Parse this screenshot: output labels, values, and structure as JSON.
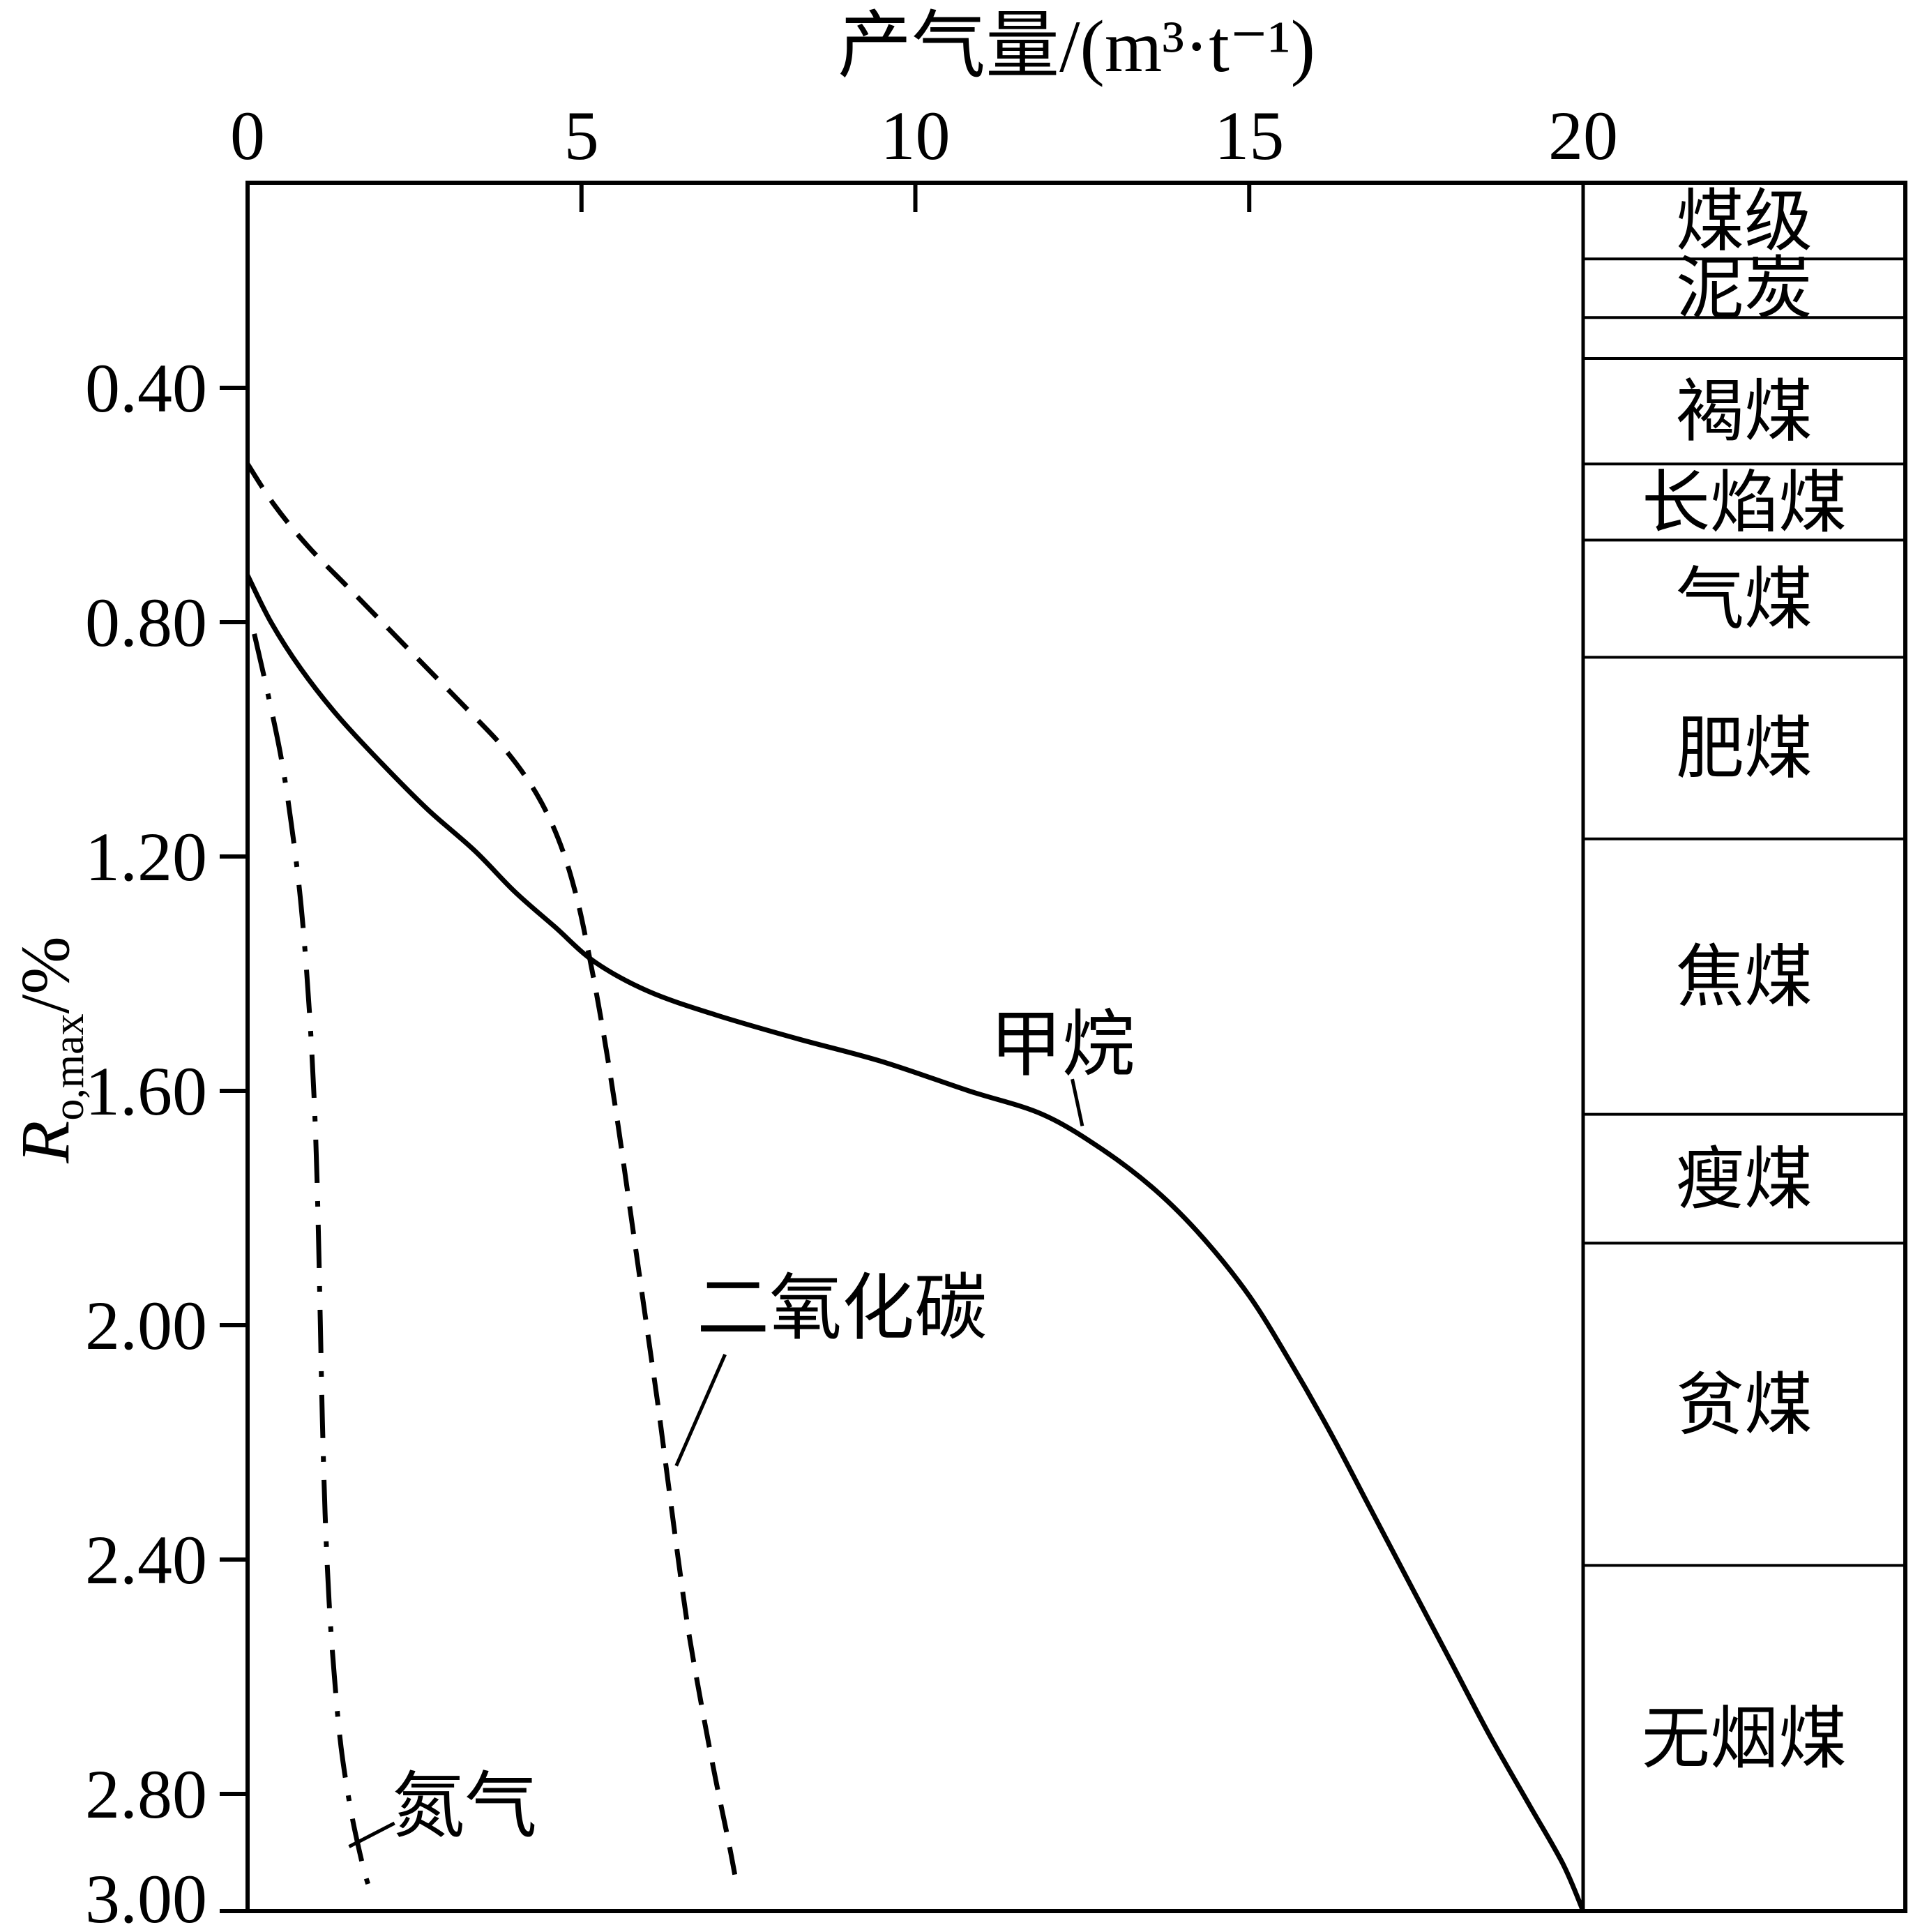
{
  "chart_data": {
    "type": "line",
    "title": "",
    "grid": false,
    "legend": "labels-on-chart",
    "colors": {
      "ink": "#000000",
      "background": "#ffffff"
    },
    "x_axis": {
      "label": "产气量/(m³·t⁻¹)",
      "position": "top",
      "range": [
        0,
        20
      ],
      "ticks": [
        {
          "v": 0,
          "label": "0"
        },
        {
          "v": 5,
          "label": "5"
        },
        {
          "v": 10,
          "label": "10"
        },
        {
          "v": 15,
          "label": "15"
        },
        {
          "v": 20,
          "label": "20"
        }
      ]
    },
    "y_axis": {
      "symbol": "R",
      "subscript": "o,max",
      "suffix": "/%",
      "direction": "downward",
      "range_top": 0.05,
      "range_bottom": 3.0,
      "ticks": [
        {
          "v": 0.4,
          "label": "0.40"
        },
        {
          "v": 0.8,
          "label": "0.80"
        },
        {
          "v": 1.2,
          "label": "1.20"
        },
        {
          "v": 1.6,
          "label": "1.60"
        },
        {
          "v": 2.0,
          "label": "2.00"
        },
        {
          "v": 2.4,
          "label": "2.40"
        },
        {
          "v": 2.8,
          "label": "2.80"
        },
        {
          "v": 3.0,
          "label": "3.00"
        }
      ]
    },
    "series": [
      {
        "id": "methane",
        "name": "甲烷",
        "style": "solid",
        "points": [
          [
            0,
            0.72
          ],
          [
            0.35,
            0.8
          ],
          [
            0.8,
            0.88
          ],
          [
            1.35,
            0.96
          ],
          [
            2.0,
            1.04
          ],
          [
            2.7,
            1.12
          ],
          [
            3.4,
            1.19
          ],
          [
            4.0,
            1.26
          ],
          [
            4.6,
            1.32
          ],
          [
            5.2,
            1.38
          ],
          [
            6.0,
            1.43
          ],
          [
            7.0,
            1.47
          ],
          [
            8.2,
            1.51
          ],
          [
            9.5,
            1.55
          ],
          [
            10.8,
            1.6
          ],
          [
            11.9,
            1.64
          ],
          [
            12.8,
            1.7
          ],
          [
            13.6,
            1.77
          ],
          [
            14.3,
            1.85
          ],
          [
            15.0,
            1.95
          ],
          [
            15.6,
            2.06
          ],
          [
            16.2,
            2.18
          ],
          [
            16.8,
            2.31
          ],
          [
            17.4,
            2.44
          ],
          [
            18.0,
            2.57
          ],
          [
            18.6,
            2.7
          ],
          [
            19.2,
            2.82
          ],
          [
            19.7,
            2.92
          ],
          [
            20.0,
            3.0
          ]
        ]
      },
      {
        "id": "co2",
        "name": "二氧化碳",
        "style": "dashed",
        "points": [
          [
            0,
            0.53
          ],
          [
            0.4,
            0.6
          ],
          [
            0.9,
            0.67
          ],
          [
            1.5,
            0.74
          ],
          [
            2.1,
            0.81
          ],
          [
            2.7,
            0.88
          ],
          [
            3.3,
            0.95
          ],
          [
            3.8,
            1.01
          ],
          [
            4.2,
            1.07
          ],
          [
            4.5,
            1.13
          ],
          [
            4.75,
            1.2
          ],
          [
            4.95,
            1.28
          ],
          [
            5.1,
            1.36
          ],
          [
            5.25,
            1.45
          ],
          [
            5.4,
            1.55
          ],
          [
            5.55,
            1.66
          ],
          [
            5.7,
            1.78
          ],
          [
            5.85,
            1.9
          ],
          [
            6.0,
            2.02
          ],
          [
            6.15,
            2.14
          ],
          [
            6.3,
            2.27
          ],
          [
            6.45,
            2.4
          ],
          [
            6.6,
            2.52
          ],
          [
            6.8,
            2.65
          ],
          [
            7.0,
            2.77
          ],
          [
            7.2,
            2.88
          ],
          [
            7.3,
            2.94
          ]
        ]
      },
      {
        "id": "nitrogen",
        "name": "氮气",
        "style": "dashdot",
        "points": [
          [
            0.1,
            0.82
          ],
          [
            0.3,
            0.92
          ],
          [
            0.5,
            1.03
          ],
          [
            0.65,
            1.14
          ],
          [
            0.78,
            1.26
          ],
          [
            0.88,
            1.39
          ],
          [
            0.96,
            1.53
          ],
          [
            1.02,
            1.68
          ],
          [
            1.06,
            1.84
          ],
          [
            1.09,
            2.0
          ],
          [
            1.12,
            2.16
          ],
          [
            1.16,
            2.32
          ],
          [
            1.22,
            2.47
          ],
          [
            1.3,
            2.6
          ],
          [
            1.4,
            2.72
          ],
          [
            1.55,
            2.83
          ],
          [
            1.72,
            2.92
          ],
          [
            1.82,
            2.96
          ]
        ]
      }
    ],
    "annotations": [
      {
        "id": "methane",
        "text": "甲烷",
        "x": 12.2,
        "r": 1.52,
        "leader": [
          [
            12.35,
            1.58
          ],
          [
            12.5,
            1.66
          ]
        ]
      },
      {
        "id": "co2",
        "text": "二氧化碳",
        "x": 8.9,
        "r": 1.97,
        "leader": [
          [
            7.15,
            2.05
          ],
          [
            6.42,
            2.24
          ]
        ]
      },
      {
        "id": "nitrogen",
        "text": "氮气",
        "x": 3.25,
        "r": 2.82,
        "leader": [
          [
            2.2,
            2.85
          ],
          [
            1.52,
            2.89
          ]
        ]
      }
    ],
    "coal_rank_column": {
      "header": {
        "label": "煤级",
        "r_top": 0.05,
        "r_bottom": 0.18
      },
      "rows": [
        {
          "label": "泥炭",
          "r_top": 0.18,
          "r_bottom": 0.28
        },
        {
          "label": "",
          "r_top": 0.28,
          "r_bottom": 0.35
        },
        {
          "label": "褐煤",
          "r_top": 0.35,
          "r_bottom": 0.53
        },
        {
          "label": "长焰煤",
          "r_top": 0.53,
          "r_bottom": 0.66
        },
        {
          "label": "气煤",
          "r_top": 0.66,
          "r_bottom": 0.86
        },
        {
          "label": "肥煤",
          "r_top": 0.86,
          "r_bottom": 1.17
        },
        {
          "label": "焦煤",
          "r_top": 1.17,
          "r_bottom": 1.64
        },
        {
          "label": "瘦煤",
          "r_top": 1.64,
          "r_bottom": 1.86
        },
        {
          "label": "贫煤",
          "r_top": 1.86,
          "r_bottom": 2.41
        },
        {
          "label": "无烟煤",
          "r_top": 2.41,
          "r_bottom": 3.0
        }
      ]
    }
  }
}
